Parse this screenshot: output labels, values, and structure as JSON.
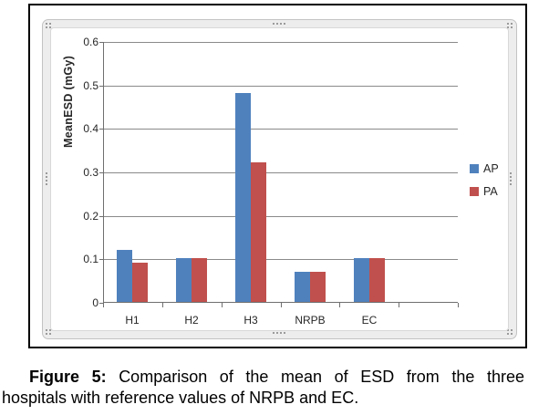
{
  "caption": {
    "label": "Figure 5:",
    "line1_rest": "Comparison of the mean of ESD from the three",
    "line2": "hospitals with reference values of NRPB and EC."
  },
  "chart_data": {
    "type": "bar",
    "title": "",
    "xlabel": "",
    "ylabel": "MeanESD (mGy)",
    "ylim": [
      0,
      0.6
    ],
    "ytick_step": 0.1,
    "ytick_labels": [
      "0",
      "0.1",
      "0.2",
      "0.3",
      "0.4",
      "0.5",
      "0.6"
    ],
    "categories": [
      "H1",
      "H2",
      "H3",
      "NRPB",
      "EC"
    ],
    "empty_trailing_slots": 1,
    "grid": true,
    "legend_position": "right",
    "legend_entries": [
      "AP",
      "PA"
    ],
    "series": [
      {
        "name": "AP",
        "color": "#4F81BD",
        "values": [
          0.12,
          0.1,
          0.48,
          0.07,
          0.1
        ]
      },
      {
        "name": "PA",
        "color": "#C0504D",
        "values": [
          0.09,
          0.1,
          0.32,
          0.07,
          0.1
        ]
      }
    ]
  },
  "colors": {
    "ap_blue": "#4F81BD",
    "pa_red": "#C0504D",
    "axis_gray": "#6f6f6f",
    "gridline_gray": "#8a8a8a",
    "frame_band_gray": "#ededed",
    "border_black": "#000000"
  }
}
